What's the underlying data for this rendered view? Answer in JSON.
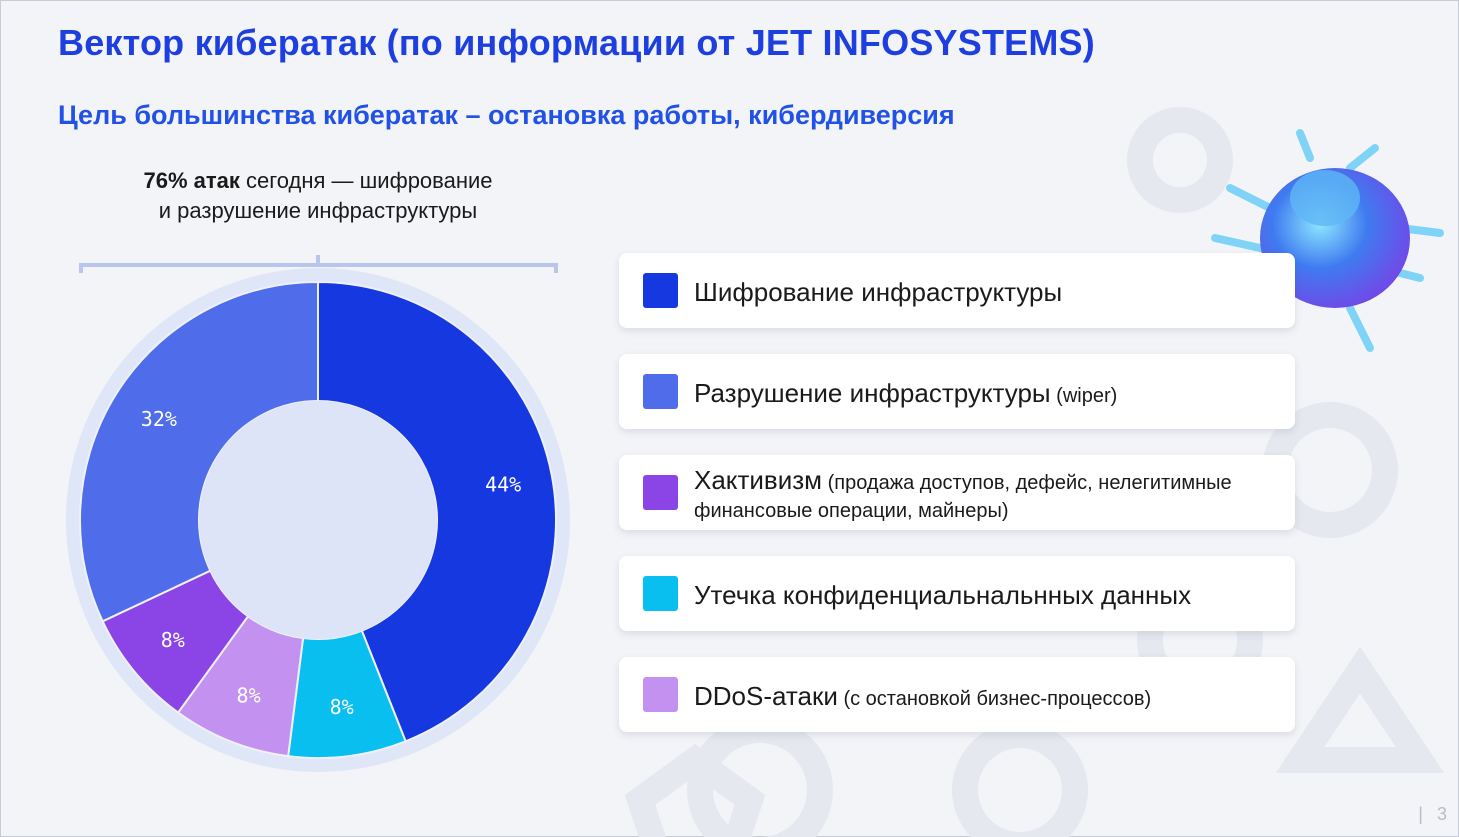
{
  "title": "Вектор кибератак (по информации от JET INFOSYSTEMS)",
  "subtitle": "Цель большинства кибератак – остановка работы, кибердиверсия",
  "callout": {
    "bold": "76% атак",
    "rest": " сегодня — шифрование",
    "line2": "и разрушение инфраструктуры"
  },
  "chart_data": {
    "type": "pie",
    "style": "donut",
    "categories": [
      "Шифрование инфраструктуры",
      "Разрушение инфраструктуры",
      "Хактивизм",
      "Утечка конфиденциальнальнных данных",
      "DDoS-атаки"
    ],
    "values": [
      44,
      32,
      8,
      8,
      8
    ],
    "labels": [
      "44%",
      "32%",
      "8%",
      "8%",
      "8%"
    ],
    "colors": [
      "#1638e0",
      "#4f6cea",
      "#8b45e6",
      "#08bff0",
      "#c392f0"
    ],
    "legend_placement": "right"
  },
  "legend": [
    {
      "label": "Шифрование инфраструктуры",
      "note": "",
      "color": "#1638e0"
    },
    {
      "label": "Разрушение инфраструктуры",
      "note": " (wiper)",
      "color": "#4f6cea"
    },
    {
      "label": "Хактивизм",
      "note": " (продажа доступов, дефейс, нелегитимные финансовые операции, майнеры)",
      "color": "#8b45e6"
    },
    {
      "label": "Утечка конфиденциальнальнных данных",
      "note": "",
      "color": "#08bff0"
    },
    {
      "label": "DDoS-атаки",
      "note": " (с остановкой бизнес-процессов)",
      "color": "#c392f0"
    }
  ],
  "page_number": "3",
  "decorations": {
    "bug_icon": "bug-icon"
  }
}
